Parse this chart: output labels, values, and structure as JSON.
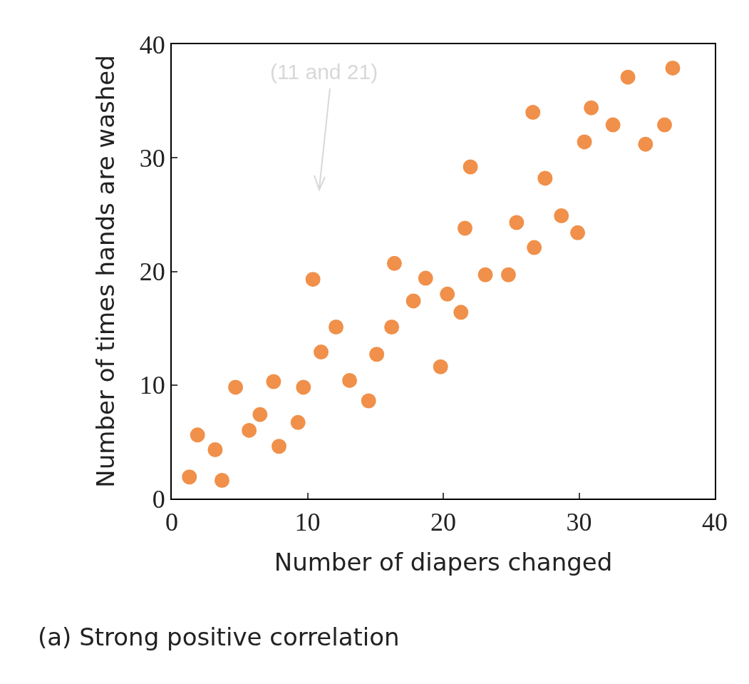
{
  "chart_data": {
    "type": "scatter",
    "xlabel": "Number of diapers changed",
    "ylabel": "Number of times hands are washed",
    "xlim": [
      0,
      40
    ],
    "ylim": [
      0,
      40
    ],
    "xticks": [
      0,
      10,
      20,
      30,
      40
    ],
    "yticks": [
      0,
      10,
      20,
      30,
      40
    ],
    "grid": false,
    "marker": "circle",
    "x": [
      1.3,
      1.9,
      3.2,
      3.7,
      4.7,
      5.7,
      6.5,
      7.5,
      7.9,
      9.3,
      9.7,
      10.4,
      11.0,
      12.1,
      13.1,
      14.5,
      15.1,
      16.2,
      16.4,
      17.8,
      18.7,
      19.8,
      20.3,
      21.3,
      21.6,
      22.0,
      23.1,
      24.8,
      25.4,
      26.7,
      26.6,
      27.5,
      28.7,
      29.9,
      30.4,
      30.9,
      32.5,
      33.6,
      34.9,
      36.3,
      36.9
    ],
    "series": [
      {
        "color": "#f0904a",
        "values": [
          1.9,
          5.6,
          4.3,
          1.6,
          9.8,
          6.0,
          7.4,
          10.3,
          4.6,
          6.7,
          9.8,
          19.3,
          12.9,
          15.1,
          10.4,
          8.6,
          12.7,
          15.1,
          20.7,
          17.4,
          19.4,
          11.6,
          18.0,
          16.4,
          23.8,
          29.2,
          19.7,
          19.7,
          24.3,
          22.1,
          34.0,
          28.2,
          24.9,
          23.4,
          31.4,
          34.4,
          32.9,
          37.1,
          31.2,
          32.9,
          37.9
        ]
      }
    ],
    "annotations": [
      "(11 and 21)",
      "(a) Strong positive correlation"
    ]
  }
}
